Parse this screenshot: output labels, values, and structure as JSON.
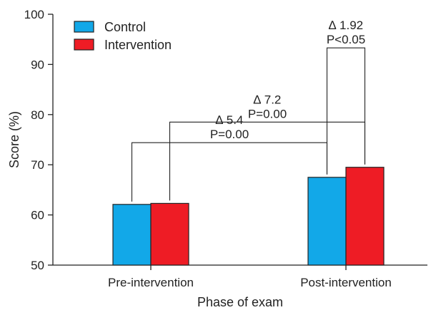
{
  "chart_data": {
    "type": "bar",
    "xlabel": "Phase of exam",
    "ylabel": "Score (%)",
    "ylim": [
      50,
      100
    ],
    "yticks": [
      50,
      60,
      70,
      80,
      90,
      100
    ],
    "categories": [
      "Pre-intervention",
      "Post-intervention"
    ],
    "series": [
      {
        "name": "Control",
        "color": "#12a8e8",
        "values": [
          62.1,
          67.5
        ]
      },
      {
        "name": "Intervention",
        "color": "#ee1c25",
        "values": [
          62.3,
          69.5
        ]
      }
    ],
    "legend_position": "top-left",
    "grid": false,
    "annotations": [
      {
        "id": "control-change",
        "delta": "∆ 5.4",
        "p": "P=0.00",
        "from": [
          0,
          0
        ],
        "to": [
          1,
          0
        ],
        "level": 74.4
      },
      {
        "id": "intervention-change",
        "delta": "∆ 7.2",
        "p": "P=0.00",
        "from": [
          0,
          1
        ],
        "to": [
          1,
          1
        ],
        "level": 78.5
      },
      {
        "id": "post-difference",
        "delta": "∆ 1.92",
        "p": "P<0.05",
        "from": [
          1,
          0
        ],
        "to": [
          1,
          1
        ],
        "level": 93.3
      }
    ]
  }
}
